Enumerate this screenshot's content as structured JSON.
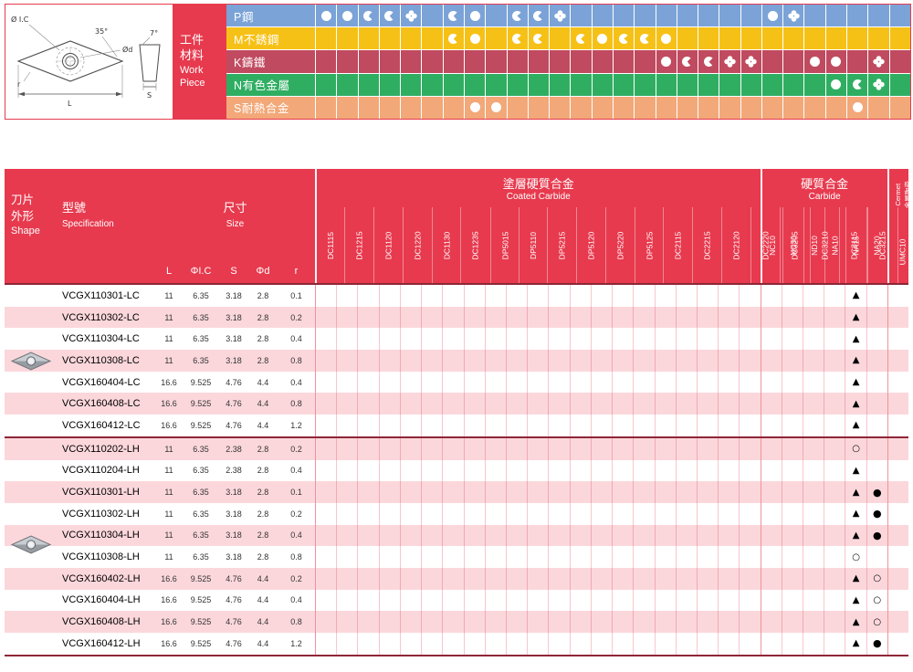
{
  "colors": {
    "header_red": "#e73a4e",
    "row_pink": "#fbd7db",
    "dark_line": "#8e2638",
    "grid_pink": "#f7c6cd",
    "band_p_blue": "#7ba3d7",
    "band_m_yellow": "#f6c117",
    "band_k_red": "#c04a5f",
    "band_n_green": "#2fae62",
    "band_s_orange": "#f2a878"
  },
  "drawing": {
    "label_ic": "Ø I.C",
    "label_angle": "35°",
    "label_relief": "7°",
    "label_d": "Ød",
    "label_r": "r",
    "label_L": "L",
    "label_S": "S"
  },
  "workpiece": {
    "zh1": "工件",
    "zh2": "材料",
    "en1": "Work",
    "en2": "Piece"
  },
  "materials": {
    "symbol_legend": {
      "F": "full-circle",
      "H": "partial-circle",
      "X": "flower"
    },
    "rows": [
      {
        "code": "P",
        "label": "P鋼",
        "color": "#7ba3d7",
        "symbols": [
          "F",
          "F",
          "H",
          "H",
          "X",
          "",
          "H",
          "F",
          "",
          "H",
          "H",
          "X",
          "",
          "",
          "",
          "",
          "",
          "",
          "",
          "",
          "",
          "F",
          "X",
          "",
          "",
          "",
          "",
          ""
        ]
      },
      {
        "code": "M",
        "label": "M不銹鋼",
        "color": "#f6c117",
        "symbols": [
          "",
          "",
          "",
          "",
          "",
          "",
          "H",
          "F",
          "",
          "H",
          "H",
          "",
          "H",
          "F",
          "H",
          "H",
          "F",
          "",
          "",
          "",
          "",
          "",
          "",
          "",
          "",
          "",
          "",
          ""
        ]
      },
      {
        "code": "K",
        "label": "K鑄鐵",
        "color": "#c04a5f",
        "symbols": [
          "",
          "",
          "",
          "",
          "",
          "",
          "",
          "",
          "",
          "",
          "",
          "",
          "",
          "",
          "",
          "",
          "F",
          "H",
          "H",
          "X",
          "X",
          "",
          "",
          "F",
          "F",
          "",
          "X",
          ""
        ]
      },
      {
        "code": "N",
        "label": "N有色金屬",
        "color": "#2fae62",
        "symbols": [
          "",
          "",
          "",
          "",
          "",
          "",
          "",
          "",
          "",
          "",
          "",
          "",
          "",
          "",
          "",
          "",
          "",
          "",
          "",
          "",
          "",
          "",
          "",
          "",
          "F",
          "H",
          "X",
          ""
        ]
      },
      {
        "code": "S",
        "label": "S耐熱合金",
        "color": "#f2a878",
        "symbols": [
          "",
          "",
          "",
          "",
          "",
          "",
          "",
          "F",
          "F",
          "",
          "",
          "",
          "",
          "",
          "",
          "",
          "",
          "",
          "",
          "",
          "",
          "",
          "",
          "",
          "",
          "F",
          "",
          ""
        ]
      }
    ]
  },
  "table": {
    "header": {
      "shape_zh1": "刀片",
      "shape_zh2": "外形",
      "shape_en": "Shape",
      "spec_zh": "型號",
      "spec_en": "Specification",
      "size_zh": "尺寸",
      "size_en": "Size",
      "dim_cols": [
        "L",
        "ΦI.C",
        "S",
        "Φd",
        "r"
      ],
      "coated_zh": "塗層硬質合金",
      "coated_en": "Coated Carbide",
      "carbide_zh": "硬質合金",
      "carbide_en": "Carbide",
      "cermet_en": "Cermet",
      "cermet_zh": "金屬陶瓷",
      "cermet_col": "UMC10",
      "coated_cols": [
        "DC1115",
        "DC1215",
        "DC1120",
        "DC1220",
        "DC1130",
        "DC1235",
        "DP5015",
        "DP5110",
        "DP5215",
        "DP5120",
        "DP5220",
        "DP5125",
        "DC2115",
        "DC2215",
        "DC2120",
        "DC2220",
        "DC3205",
        "DC3210",
        "DC3115",
        "DC3215",
        "DC3220"
      ],
      "carbide_cols": [
        "NC10",
        "NC30",
        "ND10",
        "NA10",
        "NA15",
        "NA20"
      ],
      "cermet_cols": [
        "UMC10"
      ]
    },
    "marks_legend": {
      "tri": "▲",
      "dot": "●",
      "circ": "○"
    },
    "rows": [
      {
        "group": "LC",
        "spec": "VCGX110301-LC",
        "dims": [
          "11",
          "6.35",
          "3.18",
          "2.8",
          "0.1"
        ],
        "marks": {
          "NA15": "tri"
        }
      },
      {
        "group": "LC",
        "spec": "VCGX110302-LC",
        "dims": [
          "11",
          "6.35",
          "3.18",
          "2.8",
          "0.2"
        ],
        "marks": {
          "NA15": "tri"
        }
      },
      {
        "group": "LC",
        "spec": "VCGX110304-LC",
        "dims": [
          "11",
          "6.35",
          "3.18",
          "2.8",
          "0.4"
        ],
        "marks": {
          "NA15": "tri"
        }
      },
      {
        "group": "LC",
        "spec": "VCGX110308-LC",
        "dims": [
          "11",
          "6.35",
          "3.18",
          "2.8",
          "0.8"
        ],
        "marks": {
          "NA15": "tri"
        }
      },
      {
        "group": "LC",
        "spec": "VCGX160404-LC",
        "dims": [
          "16.6",
          "9.525",
          "4.76",
          "4.4",
          "0.4"
        ],
        "marks": {
          "NA15": "tri"
        }
      },
      {
        "group": "LC",
        "spec": "VCGX160408-LC",
        "dims": [
          "16.6",
          "9.525",
          "4.76",
          "4.4",
          "0.8"
        ],
        "marks": {
          "NA15": "tri"
        }
      },
      {
        "group": "LC",
        "spec": "VCGX160412-LC",
        "dims": [
          "16.6",
          "9.525",
          "4.76",
          "4.4",
          "1.2"
        ],
        "marks": {
          "NA15": "tri"
        }
      },
      {
        "group": "LH",
        "spec": "VCGX110202-LH",
        "dims": [
          "11",
          "6.35",
          "2.38",
          "2.8",
          "0.2"
        ],
        "marks": {
          "NA15": "circ"
        }
      },
      {
        "group": "LH",
        "spec": "VCGX110204-LH",
        "dims": [
          "11",
          "6.35",
          "2.38",
          "2.8",
          "0.4"
        ],
        "marks": {
          "NA15": "tri"
        }
      },
      {
        "group": "LH",
        "spec": "VCGX110301-LH",
        "dims": [
          "11",
          "6.35",
          "3.18",
          "2.8",
          "0.1"
        ],
        "marks": {
          "NA15": "tri",
          "NA20": "dot"
        }
      },
      {
        "group": "LH",
        "spec": "VCGX110302-LH",
        "dims": [
          "11",
          "6.35",
          "3.18",
          "2.8",
          "0.2"
        ],
        "marks": {
          "NA15": "tri",
          "NA20": "dot"
        }
      },
      {
        "group": "LH",
        "spec": "VCGX110304-LH",
        "dims": [
          "11",
          "6.35",
          "3.18",
          "2.8",
          "0.4"
        ],
        "marks": {
          "NA15": "tri",
          "NA20": "dot"
        }
      },
      {
        "group": "LH",
        "spec": "VCGX110308-LH",
        "dims": [
          "11",
          "6.35",
          "3.18",
          "2.8",
          "0.8"
        ],
        "marks": {
          "NA15": "circ"
        }
      },
      {
        "group": "LH",
        "spec": "VCGX160402-LH",
        "dims": [
          "16.6",
          "9.525",
          "4.76",
          "4.4",
          "0.2"
        ],
        "marks": {
          "NA15": "tri",
          "NA20": "circ"
        }
      },
      {
        "group": "LH",
        "spec": "VCGX160404-LH",
        "dims": [
          "16.6",
          "9.525",
          "4.76",
          "4.4",
          "0.4"
        ],
        "marks": {
          "NA15": "tri",
          "NA20": "circ"
        }
      },
      {
        "group": "LH",
        "spec": "VCGX160408-LH",
        "dims": [
          "16.6",
          "9.525",
          "4.76",
          "4.4",
          "0.8"
        ],
        "marks": {
          "NA15": "tri",
          "NA20": "circ"
        }
      },
      {
        "group": "LH",
        "spec": "VCGX160412-LH",
        "dims": [
          "16.6",
          "9.525",
          "4.76",
          "4.4",
          "1.2"
        ],
        "marks": {
          "NA15": "tri",
          "NA20": "dot"
        }
      }
    ]
  }
}
